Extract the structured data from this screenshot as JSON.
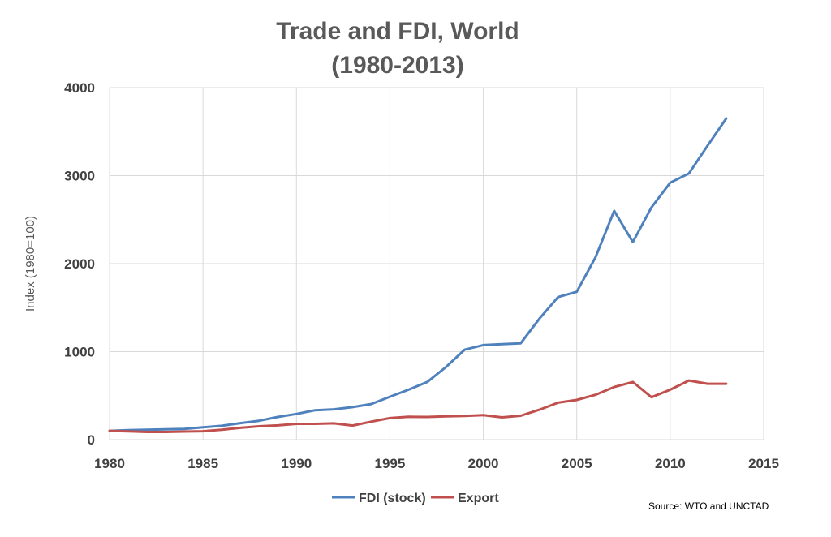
{
  "chart_data": {
    "type": "line",
    "title_lines": [
      "Trade and FDI, World",
      "(1980-2013)"
    ],
    "xlabel": "",
    "ylabel": "Index  (1980=100)",
    "xlim": [
      1980,
      2015
    ],
    "ylim": [
      0,
      4000
    ],
    "x_ticks": [
      1980,
      1985,
      1990,
      1995,
      2000,
      2005,
      2010,
      2015
    ],
    "y_ticks": [
      0,
      1000,
      2000,
      3000,
      4000
    ],
    "grid": true,
    "legend_position": "bottom",
    "x": [
      1980,
      1981,
      1982,
      1983,
      1984,
      1985,
      1986,
      1987,
      1988,
      1989,
      1990,
      1991,
      1992,
      1993,
      1994,
      1995,
      1996,
      1997,
      1998,
      1999,
      2000,
      2001,
      2002,
      2003,
      2004,
      2005,
      2006,
      2007,
      2008,
      2009,
      2010,
      2011,
      2012,
      2013
    ],
    "series": [
      {
        "name": "FDI (stock)",
        "color": "#4f81bd",
        "values": [
          100,
          108,
          113,
          118,
          122,
          140,
          158,
          188,
          215,
          258,
          292,
          335,
          345,
          370,
          405,
          488,
          568,
          655,
          825,
          1022,
          1075,
          1085,
          1095,
          1375,
          1620,
          1680,
          2070,
          2600,
          2245,
          2640,
          2920,
          3025,
          3340,
          3650
        ]
      },
      {
        "name": "Export",
        "color": "#c0504d",
        "values": [
          100,
          95,
          88,
          88,
          92,
          96,
          112,
          135,
          152,
          162,
          180,
          180,
          185,
          160,
          205,
          245,
          260,
          258,
          265,
          270,
          278,
          253,
          272,
          340,
          420,
          452,
          510,
          598,
          655,
          482,
          568,
          672,
          635,
          635
        ]
      }
    ]
  },
  "source": "Source: WTO and  UNCTAD"
}
